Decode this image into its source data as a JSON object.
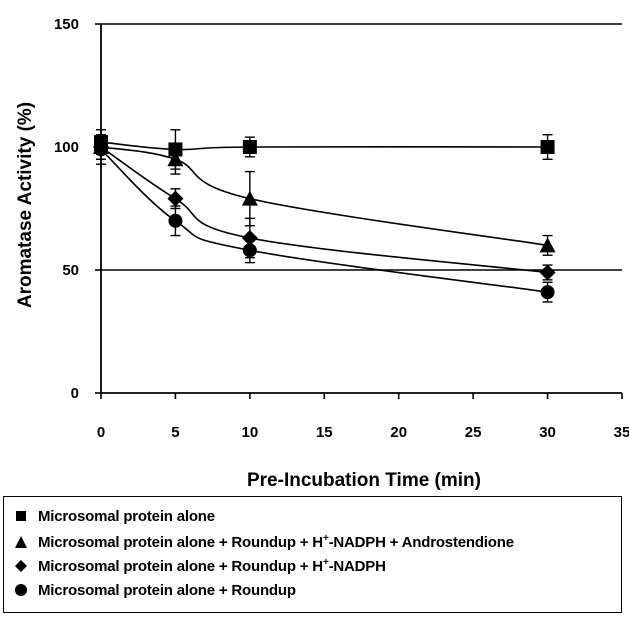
{
  "chart_data": {
    "type": "line",
    "title": "",
    "xlabel": "Pre-Incubation Time (min)",
    "ylabel": "Aromatase Activity (%)",
    "xlim": [
      0,
      35
    ],
    "ylim": [
      0,
      150
    ],
    "xticks": [
      "0",
      "5",
      "10",
      "15",
      "20",
      "25",
      "30",
      "35"
    ],
    "yticks": [
      "0",
      "50",
      "100",
      "150"
    ],
    "reference_lines": [
      50,
      150
    ],
    "grid": false,
    "legend_position": "bottom",
    "series": [
      {
        "name": "Microsomal protein alone",
        "marker": "square",
        "x": [
          0,
          5,
          10,
          30
        ],
        "y": [
          102,
          99,
          100,
          100
        ],
        "error": [
          5,
          8,
          4,
          5
        ]
      },
      {
        "name": "Microsomal protein alone + Roundup + H+-NADPH + Androstendione",
        "marker": "triangle",
        "x": [
          0,
          5,
          10,
          30
        ],
        "y": [
          100,
          95,
          79,
          60
        ],
        "error": [
          5,
          6,
          11,
          4
        ]
      },
      {
        "name": "Microsomal protein alone + Roundup + H+-NADPH",
        "marker": "diamond",
        "x": [
          0,
          5,
          10,
          30
        ],
        "y": [
          100,
          79,
          63,
          49
        ],
        "error": [
          5,
          4,
          8,
          3
        ]
      },
      {
        "name": "Microsomal protein alone + Roundup",
        "marker": "circle",
        "x": [
          0,
          5,
          10,
          30
        ],
        "y": [
          99,
          70,
          58,
          41
        ],
        "error": [
          6,
          6,
          5,
          4
        ]
      }
    ]
  },
  "legend": {
    "items": [
      {
        "label": "Microsomal protein alone"
      },
      {
        "label_parts": [
          "Microsomal protein alone + Roundup + H",
          "+",
          "-NADPH + Androstendione"
        ]
      },
      {
        "label_parts": [
          "Microsomal protein alone + Roundup + H",
          "+",
          "-NADPH"
        ]
      },
      {
        "label": "Microsomal protein alone + Roundup"
      }
    ]
  }
}
